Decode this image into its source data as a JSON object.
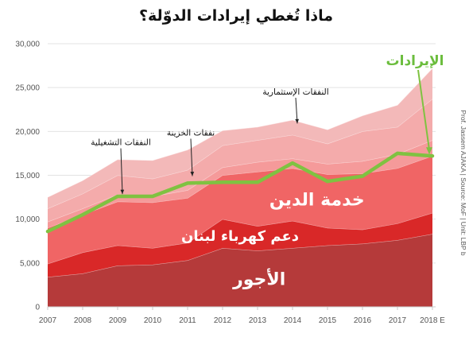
{
  "chart_data": {
    "type": "area",
    "title": "ماذا تُغطي إيرادات الدوّلة؟",
    "x": [
      "2007",
      "2008",
      "2009",
      "2010",
      "2011",
      "2012",
      "2013",
      "2014",
      "2015",
      "2016",
      "2017",
      "2018 E"
    ],
    "ylim": [
      0,
      30000
    ],
    "yticks": [
      "0",
      "5,000",
      "10,000",
      "15,000",
      "20,000",
      "25,000",
      "30,000"
    ],
    "grid": true,
    "stacked_series": [
      {
        "name": "الأجور",
        "color": "#b53a3a",
        "values": [
          3400,
          3800,
          4700,
          4800,
          5300,
          6700,
          6400,
          6700,
          7000,
          7200,
          7600,
          8300
        ]
      },
      {
        "name": "دعم كهرباء لبنان",
        "color": "#d92828",
        "values": [
          1500,
          2400,
          2300,
          1900,
          2000,
          3300,
          2800,
          3100,
          2000,
          1600,
          1900,
          2400
        ]
      },
      {
        "name": "خدمة الدين",
        "color": "#f06565",
        "values": [
          4100,
          4300,
          5000,
          5200,
          5100,
          5000,
          6200,
          6000,
          6100,
          6400,
          6300,
          6500
        ]
      },
      {
        "name": "النفقات التشغيلية",
        "color": "#f59a9a",
        "values": [
          700,
          700,
          800,
          700,
          900,
          900,
          1100,
          1100,
          1200,
          1400,
          1600,
          1800
        ]
      },
      {
        "name": "نفقات الخزينة",
        "color": "#f4abab",
        "values": [
          1500,
          1700,
          2200,
          2000,
          2300,
          2500,
          2500,
          2700,
          2300,
          3400,
          3100,
          4700
        ]
      },
      {
        "name": "النفقات الإستثمارية",
        "color": "#f3b9b9",
        "values": [
          1300,
          1500,
          1800,
          2100,
          2300,
          1700,
          1500,
          1700,
          1600,
          1800,
          2500,
          3500
        ]
      }
    ],
    "line_series": {
      "name": "الإيرادات",
      "color": "#7fc241",
      "values": [
        8600,
        10500,
        12600,
        12600,
        14100,
        14200,
        14200,
        16400,
        14300,
        14900,
        17500,
        17200
      ]
    },
    "annotations": [
      {
        "text": "النفقات الإستثمارية",
        "target_series": 5,
        "x_index": 7
      },
      {
        "text": "نفقات الخزينة",
        "target_series": 4,
        "x_index": 4
      },
      {
        "text": "النفقات التشغيلية",
        "target_series": 3,
        "x_index": 2
      }
    ],
    "area_labels": [
      {
        "text": "الأجور",
        "series": 0
      },
      {
        "text": "دعم كهرباء لبنان",
        "series": 1
      },
      {
        "text": "خدمة الدين",
        "series": 2
      }
    ],
    "line_label": "الإيرادات",
    "source": "Prof. Jassem AJAKA | Source: MoF | Unit: LBP b"
  }
}
